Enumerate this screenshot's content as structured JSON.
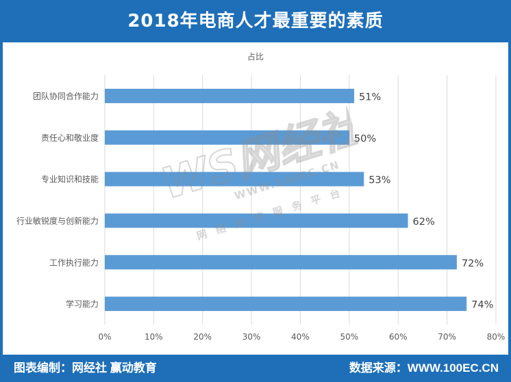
{
  "header": {
    "title": "2018年电商人才最重要的素质"
  },
  "footer": {
    "left_text": "图表编制：网经社 赢动教育",
    "right_text": "数据来源：WWW.100EC.CN"
  },
  "watermark": {
    "logo": "WS网经社",
    "url": "WWW.100EC.CN",
    "tagline": "网络经济服务平台"
  },
  "colors": {
    "header": "#1e6fb8",
    "bar": "#5b9bd5",
    "grid": "#d9d9d9"
  },
  "chart_data": {
    "type": "bar",
    "orientation": "horizontal",
    "title": "占比",
    "categories": [
      "团队协同合作能力",
      "责任心和敬业度",
      "专业知识和技能",
      "行业敏锐度与创新能力",
      "工作执行能力",
      "学习能力"
    ],
    "values": [
      51,
      50,
      53,
      62,
      72,
      74
    ],
    "value_labels": [
      "51%",
      "50%",
      "53%",
      "62%",
      "72%",
      "74%"
    ],
    "xlim": [
      0,
      80
    ],
    "x_ticks": [
      "0%",
      "10%",
      "20%",
      "30%",
      "40%",
      "50%",
      "60%",
      "70%",
      "80%"
    ],
    "grid": true,
    "legend": "none"
  }
}
